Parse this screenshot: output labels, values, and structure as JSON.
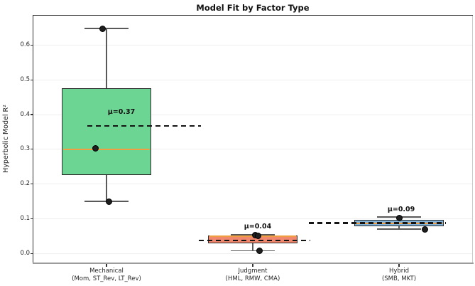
{
  "chart_data": {
    "type": "boxplot",
    "title": "Model Fit by Factor Type",
    "ylabel": "Hyperbolic Model R²",
    "xlabel": "",
    "ylim": [
      -0.025,
      0.685
    ],
    "yticks": [
      "0.0",
      "0.1",
      "0.2",
      "0.3",
      "0.4",
      "0.5",
      "0.6"
    ],
    "grid": "horizontal-light",
    "legend": "none",
    "groups": [
      {
        "label": "Mechanical",
        "sublabel": "(Mom, ST_Rev, LT_Rev)",
        "fill": "#6cd593",
        "whisker_lo": 0.15,
        "q1": 0.225,
        "median": 0.3,
        "q3": 0.475,
        "whisker_hi": 0.648,
        "mean": 0.368,
        "mean_label": "μ=0.37",
        "mean_span": [
          -0.131,
          0.645
        ],
        "label_dx": 0.102,
        "points": [
          {
            "v": 0.648,
            "dx": -0.025
          },
          {
            "v": 0.302,
            "dx": -0.073
          },
          {
            "v": 0.15,
            "dx": 0.016
          }
        ]
      },
      {
        "label": "Judgment",
        "sublabel": "(HML, RMW, CMA)",
        "fill": "#f1876c",
        "whisker_lo": 0.008,
        "q1": 0.029,
        "median": 0.05,
        "q3": 0.0525,
        "whisker_hi": 0.054,
        "mean": 0.0375,
        "mean_label": "μ=0.04",
        "mean_span": [
          -0.369,
          0.393
        ],
        "label_dx": 0.034,
        "points": [
          {
            "v": 0.053,
            "dx": 0.015
          },
          {
            "v": 0.05,
            "dx": 0.037
          },
          {
            "v": 0.008,
            "dx": 0.047
          }
        ]
      },
      {
        "label": "Hybrid",
        "sublabel": "(SMB, MKT)",
        "fill": "#82b4d9",
        "whisker_lo": 0.07,
        "q1": 0.079,
        "median": 0.0875,
        "q3": 0.096,
        "whisker_hi": 0.105,
        "mean": 0.0875,
        "mean_label": "μ=0.09",
        "mean_span": [
          -0.617,
          0.32
        ],
        "label_dx": 0.015,
        "points": [
          {
            "v": 0.103,
            "dx": 0.002
          },
          {
            "v": 0.07,
            "dx": 0.175
          }
        ]
      }
    ],
    "colors": {
      "median_line": "#ef9e42",
      "mean_dash": "#141414",
      "point": "#1e1e1e",
      "whisker": "#595959",
      "box_edge": "#2b2b2b",
      "grid_line": "#efefef",
      "spine_dark": "#2e2e2e",
      "spine_right": "#cccccc",
      "spine_bottom": "#9b9b9b"
    }
  }
}
